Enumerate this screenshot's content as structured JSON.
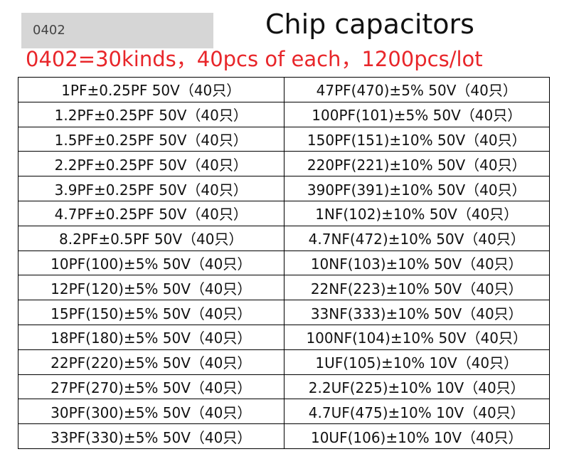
{
  "header": {
    "badge": "0402",
    "title": "Chip capacitors",
    "subtitle": "0402=30kinds，40pcs of each，1200pcs/lot"
  },
  "table": {
    "rows": [
      [
        "1PF±0.25PF 50V（40只）",
        "47PF(470)±5% 50V（40只）"
      ],
      [
        "1.2PF±0.25PF 50V（40只）",
        "100PF(101)±5% 50V（40只）"
      ],
      [
        "1.5PF±0.25PF 50V（40只）",
        "150PF(151)±10% 50V（40只）"
      ],
      [
        "2.2PF±0.25PF 50V（40只）",
        "220PF(221)±10% 50V（40只）"
      ],
      [
        "3.9PF±0.25PF 50V（40只）",
        "390PF(391)±10% 50V（40只）"
      ],
      [
        "4.7PF±0.25PF 50V（40只）",
        "1NF(102)±10% 50V（40只）"
      ],
      [
        "8.2PF±0.5PF 50V（40只）",
        "4.7NF(472)±10% 50V（40只）"
      ],
      [
        "10PF(100)±5% 50V（40只）",
        "10NF(103)±10% 50V（40只）"
      ],
      [
        "12PF(120)±5% 50V（40只）",
        "22NF(223)±10% 50V（40只）"
      ],
      [
        "15PF(150)±5% 50V（40只）",
        "33NF(333)±10% 50V（40只）"
      ],
      [
        "18PF(180)±5% 50V（40只）",
        "100NF(104)±10% 50V（40只）"
      ],
      [
        "22PF(220)±5% 50V（40只）",
        "1UF(105)±10% 10V（40只）"
      ],
      [
        "27PF(270)±5% 50V（40只）",
        "2.2UF(225)±10% 10V（40只）"
      ],
      [
        "30PF(300)±5% 50V（40只）",
        "4.7UF(475)±10% 10V（40只）"
      ],
      [
        "33PF(330)±5% 50V（40只）",
        "10UF(106)±10% 10V（40只）"
      ]
    ]
  }
}
